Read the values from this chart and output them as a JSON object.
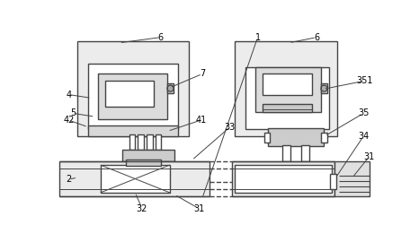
{
  "bg": "#ffffff",
  "lc": "#444444",
  "lw": 1.0,
  "fill_outer": "#e8e8e8",
  "fill_inner1": "#d8d8d8",
  "fill_white": "#ffffff",
  "fill_gray": "#cccccc",
  "fill_rail": "#e0e0e0"
}
